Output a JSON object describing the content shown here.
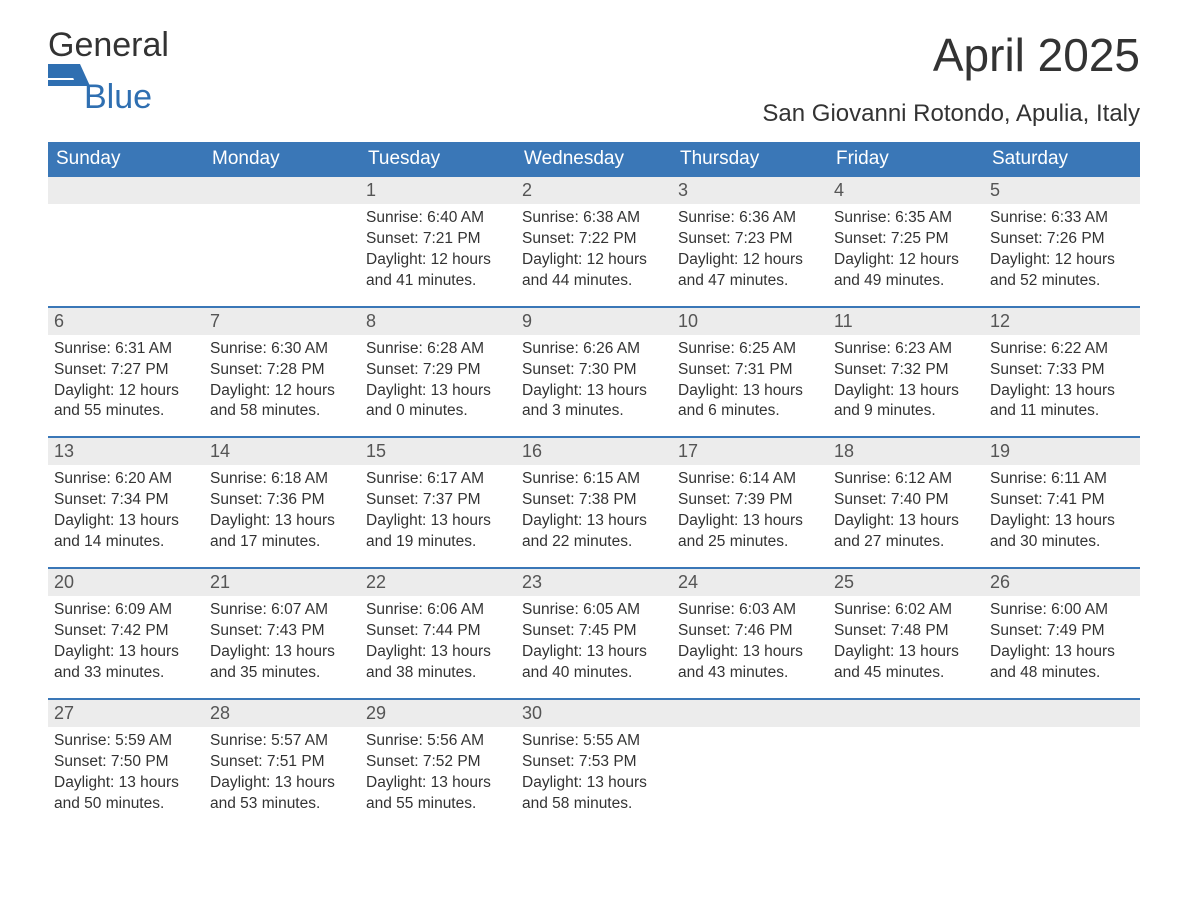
{
  "brand": {
    "word_general": "General",
    "word_blue": "Blue",
    "logo_color": "#2f6fb1",
    "general_color": "#333333"
  },
  "title": {
    "month": "April 2025",
    "location": "San Giovanni Rotondo, Apulia, Italy"
  },
  "styling": {
    "header_bg": "#3a77b7",
    "header_text": "#ffffff",
    "daynum_bg": "#ececec",
    "daynum_color": "#555555",
    "body_text": "#333333",
    "divider_color": "#3a77b7",
    "page_bg": "#ffffff",
    "month_fontsize": 46,
    "location_fontsize": 24,
    "weekday_fontsize": 19,
    "daynum_fontsize": 18,
    "cell_fontsize": 15.5
  },
  "weekdays": [
    "Sunday",
    "Monday",
    "Tuesday",
    "Wednesday",
    "Thursday",
    "Friday",
    "Saturday"
  ],
  "weeks": [
    {
      "days": [
        {
          "num": "",
          "lines": []
        },
        {
          "num": "",
          "lines": []
        },
        {
          "num": "1",
          "lines": [
            "Sunrise: 6:40 AM",
            "Sunset: 7:21 PM",
            "Daylight: 12 hours",
            "and 41 minutes."
          ]
        },
        {
          "num": "2",
          "lines": [
            "Sunrise: 6:38 AM",
            "Sunset: 7:22 PM",
            "Daylight: 12 hours",
            "and 44 minutes."
          ]
        },
        {
          "num": "3",
          "lines": [
            "Sunrise: 6:36 AM",
            "Sunset: 7:23 PM",
            "Daylight: 12 hours",
            "and 47 minutes."
          ]
        },
        {
          "num": "4",
          "lines": [
            "Sunrise: 6:35 AM",
            "Sunset: 7:25 PM",
            "Daylight: 12 hours",
            "and 49 minutes."
          ]
        },
        {
          "num": "5",
          "lines": [
            "Sunrise: 6:33 AM",
            "Sunset: 7:26 PM",
            "Daylight: 12 hours",
            "and 52 minutes."
          ]
        }
      ]
    },
    {
      "days": [
        {
          "num": "6",
          "lines": [
            "Sunrise: 6:31 AM",
            "Sunset: 7:27 PM",
            "Daylight: 12 hours",
            "and 55 minutes."
          ]
        },
        {
          "num": "7",
          "lines": [
            "Sunrise: 6:30 AM",
            "Sunset: 7:28 PM",
            "Daylight: 12 hours",
            "and 58 minutes."
          ]
        },
        {
          "num": "8",
          "lines": [
            "Sunrise: 6:28 AM",
            "Sunset: 7:29 PM",
            "Daylight: 13 hours",
            "and 0 minutes."
          ]
        },
        {
          "num": "9",
          "lines": [
            "Sunrise: 6:26 AM",
            "Sunset: 7:30 PM",
            "Daylight: 13 hours",
            "and 3 minutes."
          ]
        },
        {
          "num": "10",
          "lines": [
            "Sunrise: 6:25 AM",
            "Sunset: 7:31 PM",
            "Daylight: 13 hours",
            "and 6 minutes."
          ]
        },
        {
          "num": "11",
          "lines": [
            "Sunrise: 6:23 AM",
            "Sunset: 7:32 PM",
            "Daylight: 13 hours",
            "and 9 minutes."
          ]
        },
        {
          "num": "12",
          "lines": [
            "Sunrise: 6:22 AM",
            "Sunset: 7:33 PM",
            "Daylight: 13 hours",
            "and 11 minutes."
          ]
        }
      ]
    },
    {
      "days": [
        {
          "num": "13",
          "lines": [
            "Sunrise: 6:20 AM",
            "Sunset: 7:34 PM",
            "Daylight: 13 hours",
            "and 14 minutes."
          ]
        },
        {
          "num": "14",
          "lines": [
            "Sunrise: 6:18 AM",
            "Sunset: 7:36 PM",
            "Daylight: 13 hours",
            "and 17 minutes."
          ]
        },
        {
          "num": "15",
          "lines": [
            "Sunrise: 6:17 AM",
            "Sunset: 7:37 PM",
            "Daylight: 13 hours",
            "and 19 minutes."
          ]
        },
        {
          "num": "16",
          "lines": [
            "Sunrise: 6:15 AM",
            "Sunset: 7:38 PM",
            "Daylight: 13 hours",
            "and 22 minutes."
          ]
        },
        {
          "num": "17",
          "lines": [
            "Sunrise: 6:14 AM",
            "Sunset: 7:39 PM",
            "Daylight: 13 hours",
            "and 25 minutes."
          ]
        },
        {
          "num": "18",
          "lines": [
            "Sunrise: 6:12 AM",
            "Sunset: 7:40 PM",
            "Daylight: 13 hours",
            "and 27 minutes."
          ]
        },
        {
          "num": "19",
          "lines": [
            "Sunrise: 6:11 AM",
            "Sunset: 7:41 PM",
            "Daylight: 13 hours",
            "and 30 minutes."
          ]
        }
      ]
    },
    {
      "days": [
        {
          "num": "20",
          "lines": [
            "Sunrise: 6:09 AM",
            "Sunset: 7:42 PM",
            "Daylight: 13 hours",
            "and 33 minutes."
          ]
        },
        {
          "num": "21",
          "lines": [
            "Sunrise: 6:07 AM",
            "Sunset: 7:43 PM",
            "Daylight: 13 hours",
            "and 35 minutes."
          ]
        },
        {
          "num": "22",
          "lines": [
            "Sunrise: 6:06 AM",
            "Sunset: 7:44 PM",
            "Daylight: 13 hours",
            "and 38 minutes."
          ]
        },
        {
          "num": "23",
          "lines": [
            "Sunrise: 6:05 AM",
            "Sunset: 7:45 PM",
            "Daylight: 13 hours",
            "and 40 minutes."
          ]
        },
        {
          "num": "24",
          "lines": [
            "Sunrise: 6:03 AM",
            "Sunset: 7:46 PM",
            "Daylight: 13 hours",
            "and 43 minutes."
          ]
        },
        {
          "num": "25",
          "lines": [
            "Sunrise: 6:02 AM",
            "Sunset: 7:48 PM",
            "Daylight: 13 hours",
            "and 45 minutes."
          ]
        },
        {
          "num": "26",
          "lines": [
            "Sunrise: 6:00 AM",
            "Sunset: 7:49 PM",
            "Daylight: 13 hours",
            "and 48 minutes."
          ]
        }
      ]
    },
    {
      "days": [
        {
          "num": "27",
          "lines": [
            "Sunrise: 5:59 AM",
            "Sunset: 7:50 PM",
            "Daylight: 13 hours",
            "and 50 minutes."
          ]
        },
        {
          "num": "28",
          "lines": [
            "Sunrise: 5:57 AM",
            "Sunset: 7:51 PM",
            "Daylight: 13 hours",
            "and 53 minutes."
          ]
        },
        {
          "num": "29",
          "lines": [
            "Sunrise: 5:56 AM",
            "Sunset: 7:52 PM",
            "Daylight: 13 hours",
            "and 55 minutes."
          ]
        },
        {
          "num": "30",
          "lines": [
            "Sunrise: 5:55 AM",
            "Sunset: 7:53 PM",
            "Daylight: 13 hours",
            "and 58 minutes."
          ]
        },
        {
          "num": "",
          "lines": []
        },
        {
          "num": "",
          "lines": []
        },
        {
          "num": "",
          "lines": []
        }
      ]
    }
  ]
}
